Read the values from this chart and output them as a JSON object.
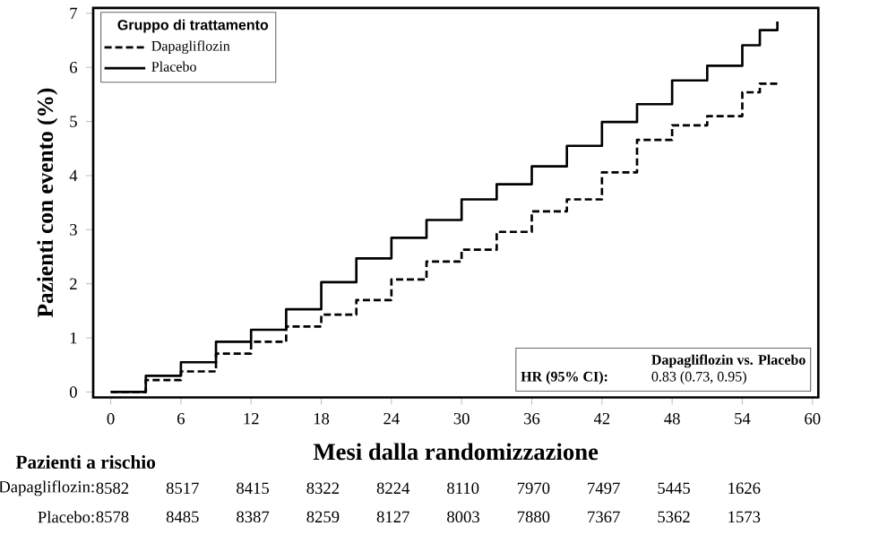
{
  "chart_data": {
    "type": "step",
    "xlabel": "Mesi dalla randomizzazione",
    "ylabel": "Pazienti con evento (%)",
    "legend_title": "Gruppo di trattamento",
    "legend": "top left",
    "marker": "none",
    "xlim": [
      -1.5,
      60.5
    ],
    "ylim": [
      -0.1,
      7.1
    ],
    "xticks": [
      0,
      6,
      12,
      18,
      24,
      30,
      36,
      42,
      48,
      54,
      60
    ],
    "yticks": [
      0,
      1,
      2,
      3,
      4,
      5,
      6,
      7
    ],
    "series": [
      {
        "name": "Dapagliflozin",
        "color": "#000000",
        "line_style": "dashed",
        "x": [
          0,
          3,
          6,
          9,
          12,
          15,
          18,
          21,
          24,
          27,
          30,
          33,
          36,
          39,
          42,
          45,
          48,
          51,
          54,
          55.5,
          57
        ],
        "values": [
          0,
          0.22,
          0.38,
          0.71,
          0.93,
          1.21,
          1.43,
          1.7,
          2.08,
          2.41,
          2.63,
          2.96,
          3.34,
          3.56,
          4.06,
          4.66,
          4.93,
          5.1,
          5.54,
          5.7,
          5.7
        ]
      },
      {
        "name": "Placebo",
        "color": "#000000",
        "line_style": "solid",
        "x": [
          0,
          3,
          6,
          9,
          12,
          15,
          18,
          21,
          24,
          27,
          30,
          33,
          36,
          39,
          42,
          45,
          48,
          51,
          54,
          55.5,
          57,
          57
        ],
        "values": [
          0,
          0.3,
          0.55,
          0.93,
          1.15,
          1.53,
          2.03,
          2.47,
          2.85,
          3.18,
          3.56,
          3.84,
          4.17,
          4.55,
          4.99,
          5.32,
          5.76,
          6.03,
          6.41,
          6.69,
          6.69,
          6.85
        ]
      }
    ],
    "annotations": [
      "Dapagliflozin vs. Placebo",
      "HR (95% CI):",
      "0.83 (0.73, 0.95)",
      "Pazienti a rischio",
      "Dapagliflozin:",
      "8582",
      "8517",
      "8415",
      "8322",
      "8224",
      "8110",
      "7970",
      "7497",
      "5445",
      "1626",
      "Placebo:",
      "8578",
      "8485",
      "8387",
      "8259",
      "8127",
      "8003",
      "7880",
      "7367",
      "5362",
      "1573"
    ]
  }
}
